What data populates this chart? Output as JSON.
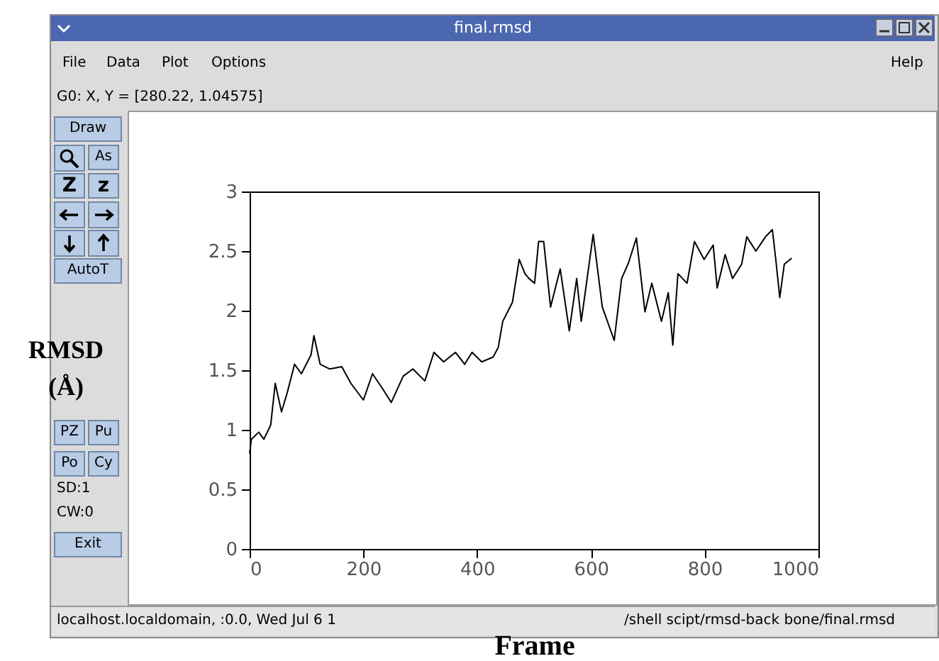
{
  "chart_data": {
    "type": "line",
    "title": "final.rmsd",
    "xlabel": "Frame",
    "ylabel": "RMSD (Å)",
    "xlim": [
      0,
      1000
    ],
    "xticks": [
      0,
      200,
      400,
      600,
      800,
      1000
    ],
    "ylim": [
      0,
      3
    ],
    "yticks": [
      0,
      0.5,
      1,
      1.5,
      2,
      2.5,
      3
    ],
    "grid": false,
    "marker": "none",
    "line_style": "solid",
    "series": [
      {
        "color": "#000000",
        "x": [
          0,
          3,
          16,
          25,
          37,
          45,
          56,
          66,
          79,
          91,
          108,
          113,
          124,
          141,
          162,
          178,
          200,
          216,
          233,
          249,
          270,
          287,
          308,
          324,
          341,
          362,
          378,
          391,
          408,
          428,
          437,
          445,
          462,
          474,
          484,
          491,
          501,
          508,
          517,
          529,
          546,
          562,
          575,
          583,
          604,
          620,
          641,
          654,
          666,
          680,
          695,
          707,
          724,
          736,
          744,
          753,
          769,
          782,
          799,
          815,
          822,
          836,
          849,
          865,
          874,
          890,
          907,
          919,
          925,
          932,
          940,
          953
        ],
        "values": [
          0.8,
          0.92,
          0.98,
          0.92,
          1.04,
          1.39,
          1.15,
          1.31,
          1.55,
          1.47,
          1.63,
          1.79,
          1.55,
          1.51,
          1.53,
          1.39,
          1.25,
          1.47,
          1.35,
          1.23,
          1.45,
          1.51,
          1.41,
          1.65,
          1.57,
          1.65,
          1.55,
          1.65,
          1.57,
          1.61,
          1.69,
          1.91,
          2.07,
          2.43,
          2.31,
          2.27,
          2.23,
          2.58,
          2.58,
          2.03,
          2.35,
          1.83,
          2.27,
          1.91,
          2.64,
          2.03,
          1.75,
          2.27,
          2.4,
          2.61,
          1.99,
          2.23,
          1.91,
          2.15,
          1.71,
          2.31,
          2.23,
          2.58,
          2.43,
          2.55,
          2.19,
          2.47,
          2.27,
          2.39,
          2.62,
          2.5,
          2.62,
          2.68,
          2.43,
          2.11,
          2.39,
          2.44
        ]
      }
    ],
    "annotations": [
      "File",
      "Data",
      "Plot",
      "Options",
      "Help",
      "G0: X, Y = [280.22, 1.04575]",
      "Draw",
      "As",
      "Z",
      "z",
      "AutoT",
      "PZ",
      "Pu",
      "Po",
      "Cy",
      "SD:1",
      "CW:0",
      "Exit",
      "localhost.localdomain, :0.0, Wed Jul  6 1",
      "/shell scipt/rmsd-back bone/final.rmsd"
    ]
  }
}
